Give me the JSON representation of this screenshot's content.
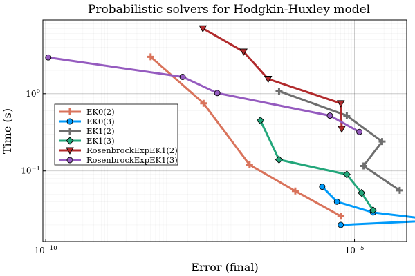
{
  "chart_data": {
    "type": "line",
    "title": "Probabilistic solvers for Hodgkin-Huxley model",
    "xlabel": "Error (final)",
    "ylabel": "Time (s)",
    "xscale": "log",
    "yscale": "log",
    "xlim": [
      9e-11,
      7e-05
    ],
    "ylim": [
      0.0122,
      9.0
    ],
    "x_ticks": [
      {
        "value": 1e-10,
        "base": "10",
        "exp": "−10"
      },
      {
        "value": 1e-05,
        "base": "10",
        "exp": "−5"
      }
    ],
    "y_ticks": [
      {
        "value": 0.1,
        "base": "10",
        "exp": "−1"
      },
      {
        "value": 1,
        "base": "10",
        "exp": "0"
      }
    ],
    "grid": true,
    "legend_position": "left",
    "series": [
      {
        "name": "EK0(2)",
        "color": "#d9735b",
        "marker": "cross",
        "x": [
          5e-09,
          3.6e-08,
          2e-07,
          1.1e-06,
          6e-06
        ],
        "y": [
          3.0,
          0.75,
          0.12,
          0.055,
          0.026
        ]
      },
      {
        "name": "EK0(3)",
        "color": "#009af9",
        "marker": "circle",
        "x": [
          3e-06,
          5.2e-06,
          2e-05,
          0.00023,
          6e-06
        ],
        "y": [
          0.0625,
          0.04,
          0.029,
          0.023,
          0.02
        ]
      },
      {
        "name": "EK1(2)",
        "color": "#6e6e6e",
        "marker": "cross",
        "x": [
          6e-07,
          7.5e-06,
          2.8e-05,
          1.4e-05,
          5.4e-05
        ],
        "y": [
          1.08,
          0.52,
          0.24,
          0.116,
          0.056
        ]
      },
      {
        "name": "EK1(3)",
        "color": "#22a67a",
        "marker": "diamond",
        "x": [
          3e-07,
          6e-07,
          7.5e-06,
          1.3e-05,
          2e-05
        ],
        "y": [
          0.45,
          0.14,
          0.09,
          0.052,
          0.031
        ]
      },
      {
        "name": "RosenbrockExpEK1(2)",
        "color": "#b12a2c",
        "marker": "triangle-down",
        "x": [
          3.5e-08,
          1.6e-07,
          4e-07,
          6e-06,
          6.2e-06
        ],
        "y": [
          7.0,
          3.5,
          1.55,
          0.75,
          0.35
        ]
      },
      {
        "name": "RosenbrockExpEK1(3)",
        "color": "#955bbf",
        "marker": "circle",
        "x": [
          1.1e-10,
          1.65e-08,
          6e-08,
          4e-06,
          1.2e-05
        ],
        "y": [
          2.95,
          1.65,
          1.02,
          0.52,
          0.32
        ]
      }
    ]
  }
}
